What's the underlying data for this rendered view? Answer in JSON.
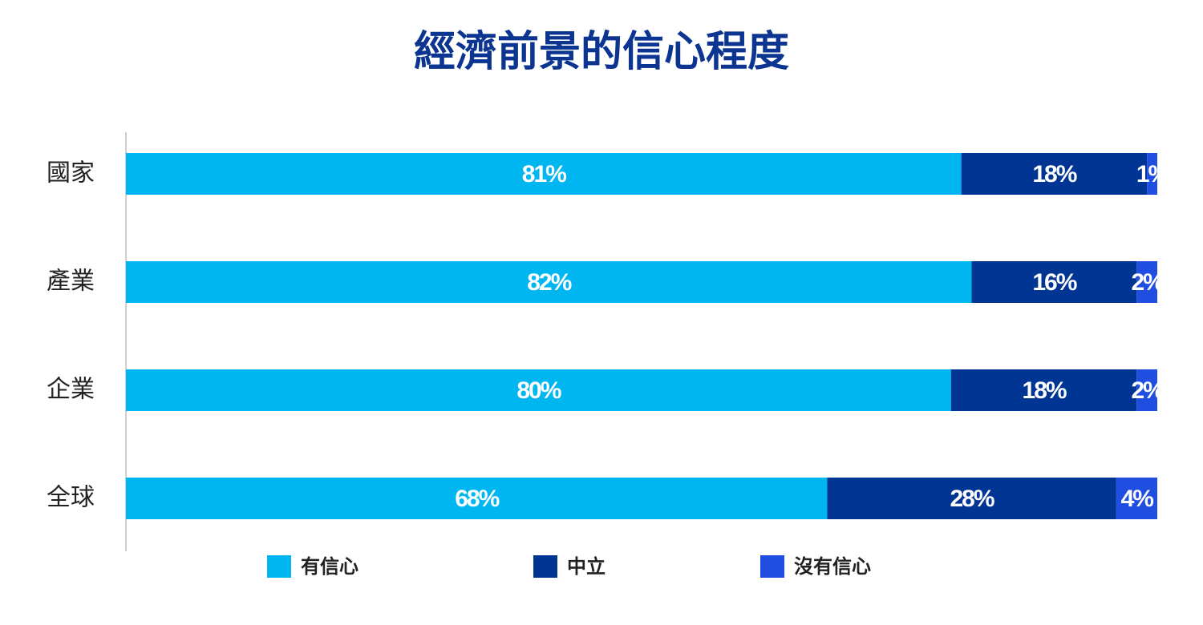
{
  "chart_data": {
    "type": "stacked-barh",
    "title": "經濟前景的信心程度",
    "categories": [
      "國家",
      "產業",
      "企業",
      "全球"
    ],
    "xlim": [
      0,
      100
    ],
    "series": [
      {
        "name": "有信心",
        "color": "#00b6f1",
        "values": [
          81,
          82,
          80,
          68
        ],
        "value_labels": [
          "81%",
          "82%",
          "80%",
          "68%"
        ]
      },
      {
        "name": "中立",
        "color": "#003594",
        "values": [
          18,
          16,
          18,
          28
        ],
        "value_labels": [
          "18%",
          "16%",
          "18%",
          "28%"
        ]
      },
      {
        "name": "沒有信心",
        "color": "#1f4ee0",
        "values": [
          1,
          2,
          2,
          4
        ],
        "value_labels": [
          "1%",
          "2%",
          "2%",
          "4%"
        ]
      }
    ]
  }
}
